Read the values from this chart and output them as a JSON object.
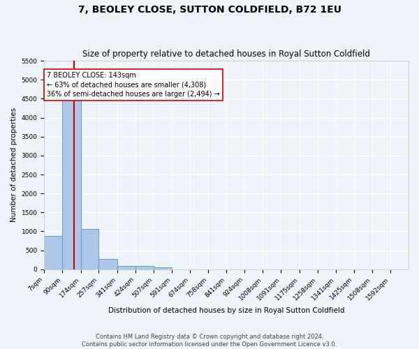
{
  "title": "7, BEOLEY CLOSE, SUTTON COLDFIELD, B72 1EU",
  "subtitle": "Size of property relative to detached houses in Royal Sutton Coldfield",
  "xlabel": "Distribution of detached houses by size in Royal Sutton Coldfield",
  "ylabel": "Number of detached properties",
  "footnote1": "Contains HM Land Registry data © Crown copyright and database right 2024.",
  "footnote2": "Contains public sector information licensed under the Open Government Licence v3.0.",
  "bar_edges": [
    7,
    90,
    174,
    257,
    341,
    424,
    507,
    591,
    674,
    758,
    841,
    924,
    1008,
    1091,
    1175,
    1258,
    1341,
    1425,
    1508,
    1592,
    1675
  ],
  "bar_heights": [
    880,
    4550,
    1060,
    275,
    95,
    80,
    55,
    0,
    0,
    0,
    0,
    0,
    0,
    0,
    0,
    0,
    0,
    0,
    0,
    0
  ],
  "bar_color": "#aec6e8",
  "bar_edge_color": "#5a9fd4",
  "property_size": 143,
  "vline_color": "#cc0000",
  "annotation_line1": "7 BEOLEY CLOSE: 143sqm",
  "annotation_line2": "← 63% of detached houses are smaller (4,308)",
  "annotation_line3": "36% of semi-detached houses are larger (2,494) →",
  "annotation_box_color": "#ffffff",
  "annotation_box_edge": "#cc0000",
  "ylim": [
    0,
    5500
  ],
  "yticks": [
    0,
    500,
    1000,
    1500,
    2000,
    2500,
    3000,
    3500,
    4000,
    4500,
    5000,
    5500
  ],
  "background_color": "#eef3fa",
  "grid_color": "#ffffff",
  "title_fontsize": 10,
  "subtitle_fontsize": 8.5,
  "axis_label_fontsize": 7.5,
  "tick_fontsize": 6.5,
  "annotation_fontsize": 7,
  "footnote_fontsize": 6
}
